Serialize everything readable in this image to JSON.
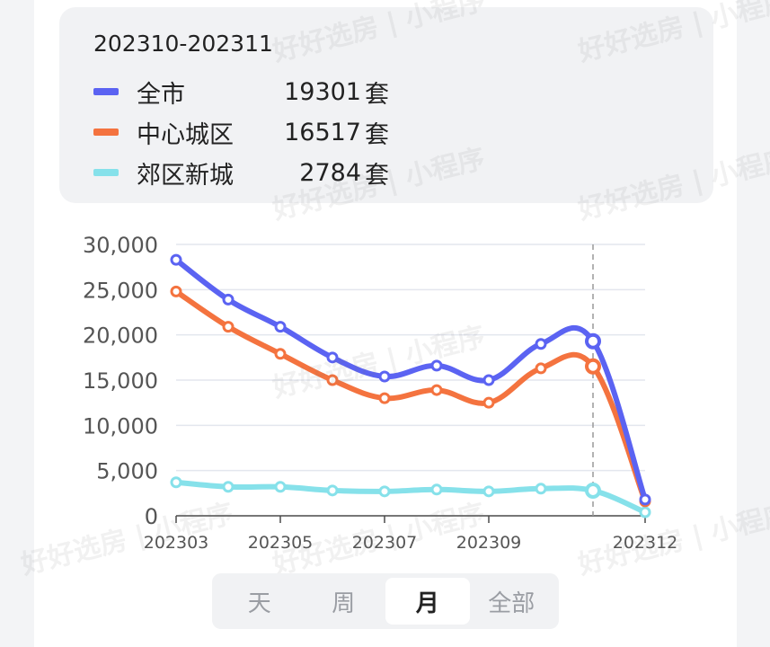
{
  "tooltip": {
    "period": "202310-202311",
    "rows": [
      {
        "name": "全市",
        "value": "19301",
        "unit": "套",
        "color": "#5b63f2"
      },
      {
        "name": "中心城区",
        "value": "16517",
        "unit": "套",
        "color": "#f4733f"
      },
      {
        "name": "郊区新城",
        "value": "2784",
        "unit": "套",
        "color": "#86e1ea"
      }
    ]
  },
  "watermark": "好好选房 | 小程序",
  "tabs": [
    {
      "label": "天",
      "active": false
    },
    {
      "label": "周",
      "active": false
    },
    {
      "label": "月",
      "active": true
    },
    {
      "label": "全部",
      "active": false
    }
  ],
  "chart_data": {
    "type": "line",
    "x": [
      "202303",
      "202304",
      "202305",
      "202306",
      "202307",
      "202308",
      "202309",
      "202310",
      "202311",
      "202312"
    ],
    "x_tick_labels": [
      "202303",
      "202305",
      "202307",
      "202309",
      "202312"
    ],
    "series": [
      {
        "name": "全市",
        "color": "#5b63f2",
        "values": [
          28300,
          23900,
          20900,
          17500,
          15400,
          16600,
          15000,
          19000,
          19301,
          1800
        ]
      },
      {
        "name": "中心城区",
        "color": "#f4733f",
        "values": [
          24800,
          20900,
          17900,
          15000,
          13000,
          13900,
          12500,
          16300,
          16517,
          1600
        ]
      },
      {
        "name": "郊区新城",
        "color": "#86e1ea",
        "values": [
          3700,
          3200,
          3200,
          2800,
          2700,
          2900,
          2700,
          3000,
          2784,
          400
        ]
      }
    ],
    "y_ticks": [
      "0",
      "5,000",
      "10,000",
      "15,000",
      "20,000",
      "25,000",
      "30,000"
    ],
    "ylim": [
      0,
      30000
    ],
    "grid": true,
    "highlight_index": 8
  }
}
